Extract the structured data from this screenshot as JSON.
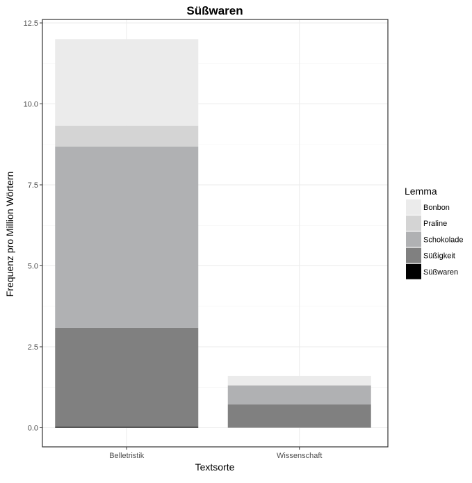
{
  "chart_data": {
    "type": "bar",
    "stacked": true,
    "title": "Süßwaren",
    "xlabel": "Textsorte",
    "ylabel": "Frequenz pro Million Wörtern",
    "categories": [
      "Belletristik",
      "Wissenschaft"
    ],
    "ylim": [
      0,
      12.5
    ],
    "yticks": [
      "0.0",
      "2.5",
      "5.0",
      "7.5",
      "10.0",
      "12.5"
    ],
    "ytick_values": [
      0,
      2.5,
      5.0,
      7.5,
      10.0,
      12.5
    ],
    "grid": true,
    "legend_title": "Lemma",
    "legend_position": "right",
    "series": [
      {
        "name": "Süßwaren",
        "color": "#000000",
        "values": [
          0.03,
          0.0
        ]
      },
      {
        "name": "Süßigkeit",
        "color": "#808080",
        "values": [
          3.05,
          0.72
        ]
      },
      {
        "name": "Schokolade",
        "color": "#b0b1b3",
        "values": [
          5.6,
          0.58
        ]
      },
      {
        "name": "Praline",
        "color": "#d4d4d4",
        "values": [
          0.65,
          0.02
        ]
      },
      {
        "name": "Bonbon",
        "color": "#ebebeb",
        "values": [
          2.67,
          0.28
        ]
      }
    ],
    "legend_order": [
      "Bonbon",
      "Praline",
      "Schokolade",
      "Süßigkeit",
      "Süßwaren"
    ]
  }
}
